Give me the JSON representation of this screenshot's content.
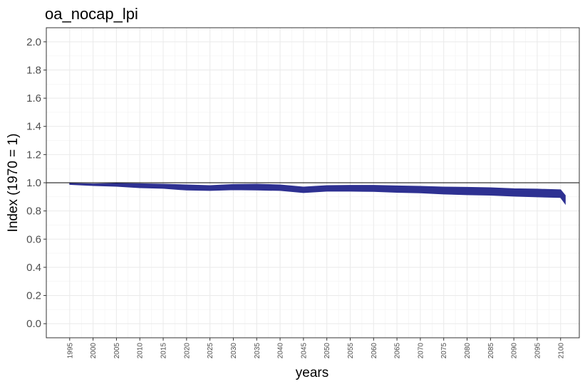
{
  "chart_data": {
    "type": "area",
    "title": "oa_nocap_lpi",
    "xlabel": "years",
    "ylabel": "Index (1970 = 1)",
    "xlim": [
      1990,
      2104
    ],
    "ylim": [
      -0.1,
      2.1
    ],
    "x_ticks": [
      1995,
      2000,
      2005,
      2010,
      2015,
      2020,
      2025,
      2030,
      2035,
      2040,
      2045,
      2050,
      2055,
      2060,
      2065,
      2070,
      2075,
      2080,
      2085,
      2090,
      2095,
      2100
    ],
    "y_ticks": [
      0.0,
      0.2,
      0.4,
      0.6,
      0.8,
      1.0,
      1.2,
      1.4,
      1.6,
      1.8,
      2.0
    ],
    "reference_line": 1.0,
    "grid": true,
    "band_color": "#2E3192",
    "series": [
      {
        "x": [
          1995,
          2000,
          2005,
          2010,
          2015,
          2020,
          2025,
          2030,
          2035,
          2040,
          2045,
          2050,
          2055,
          2060,
          2065,
          2070,
          2075,
          2080,
          2085,
          2090,
          2095,
          2100,
          2101
        ],
        "upper": [
          0.995,
          0.992,
          0.995,
          0.993,
          0.99,
          0.985,
          0.98,
          0.988,
          0.99,
          0.985,
          0.97,
          0.98,
          0.982,
          0.982,
          0.978,
          0.975,
          0.97,
          0.968,
          0.965,
          0.958,
          0.955,
          0.95,
          0.91
        ],
        "lower": [
          0.988,
          0.98,
          0.975,
          0.965,
          0.96,
          0.948,
          0.945,
          0.95,
          0.948,
          0.945,
          0.93,
          0.94,
          0.94,
          0.938,
          0.932,
          0.928,
          0.92,
          0.915,
          0.912,
          0.905,
          0.9,
          0.895,
          0.85
        ]
      }
    ]
  }
}
